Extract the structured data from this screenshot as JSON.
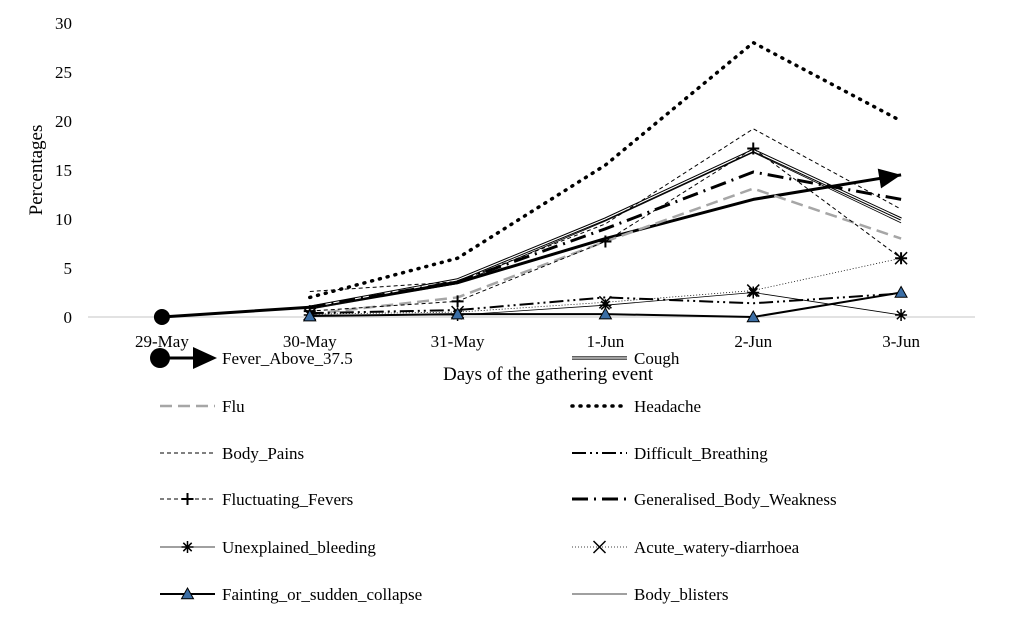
{
  "chart_data": {
    "type": "line",
    "title": "",
    "xlabel": "Days of the gathering event",
    "ylabel": "Percentages",
    "categories": [
      "29-May",
      "30-May",
      "31-May",
      "1-Jun",
      "2-Jun",
      "3-Jun"
    ],
    "ylim": [
      0,
      30
    ],
    "yticks": [
      0,
      5,
      10,
      15,
      20,
      25,
      30
    ],
    "grid": false,
    "legend_position": "bottom",
    "series": [
      {
        "name": "Fever_Above_37.5",
        "values": [
          0,
          1,
          3.5,
          8,
          12,
          14.5
        ]
      },
      {
        "name": "Cough",
        "values": [
          null,
          1,
          3.8,
          10,
          17,
          10
        ]
      },
      {
        "name": "Flu",
        "values": [
          null,
          0.3,
          2.0,
          7.7,
          13.1,
          8.0
        ]
      },
      {
        "name": "Headache",
        "values": [
          null,
          2.0,
          6.0,
          15.5,
          28.0,
          20.0
        ]
      },
      {
        "name": "Body_Pains",
        "values": [
          null,
          2.6,
          3.6,
          9.5,
          19.2,
          11.0
        ]
      },
      {
        "name": "Difficult_Breathing",
        "values": [
          null,
          0.4,
          0.7,
          2.0,
          1.4,
          2.4
        ]
      },
      {
        "name": "Fluctuating_Fevers",
        "values": [
          null,
          0.6,
          1.6,
          7.7,
          17.2,
          6.0
        ]
      },
      {
        "name": "Generalised_Body_Weakness",
        "values": [
          null,
          1.0,
          3.6,
          9.0,
          14.8,
          12.0
        ]
      },
      {
        "name": "Unexplained_bleeding",
        "values": [
          null,
          0.2,
          0.2,
          1.2,
          2.5,
          0.2
        ]
      },
      {
        "name": "Acute_watery-diarrhoea",
        "values": [
          null,
          0.3,
          0.5,
          1.5,
          2.7,
          6.0
        ]
      },
      {
        "name": "Fainting_or_sudden_collapse",
        "values": [
          null,
          0.1,
          0.3,
          0.3,
          0.0,
          2.5
        ]
      },
      {
        "name": "Body_blisters",
        "values": [
          null,
          0.8,
          3.4,
          9.8,
          16.8,
          9.6
        ]
      }
    ]
  }
}
